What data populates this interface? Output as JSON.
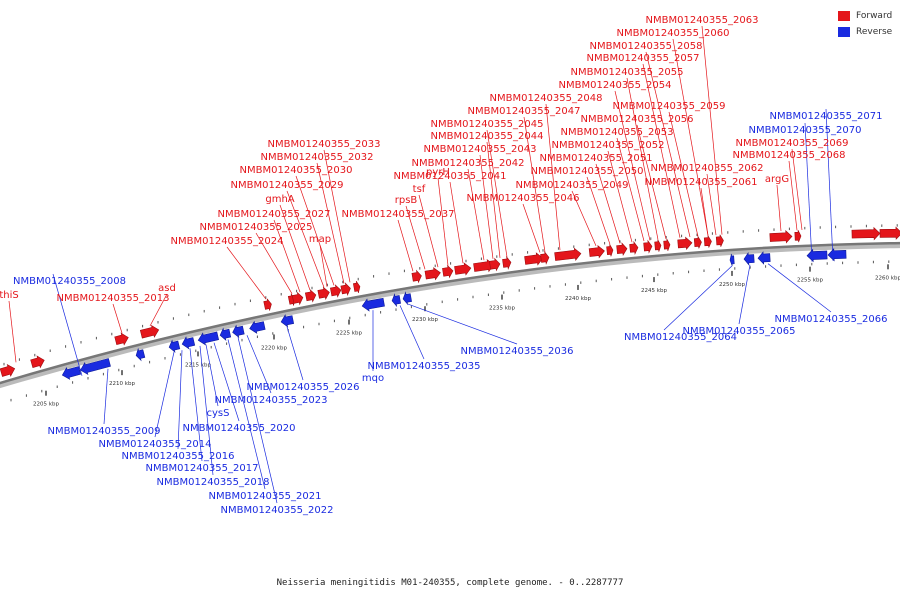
{
  "colors": {
    "forward": "#e4161b",
    "reverse": "#1a2be0",
    "axis": "#888888",
    "connector": "#888888"
  },
  "legend": {
    "forward": "Forward",
    "reverse": "Reverse"
  },
  "caption": "Neisseria meningitidis M01-240355, complete genome. - 0..2287777",
  "tick_unit": "kbp",
  "tick_labels": [
    "2205 kbp",
    "2210 kbp",
    "2215 kbp",
    "2220 kbp",
    "2225 kbp",
    "2230 kbp",
    "2235 kbp",
    "2240 kbp",
    "2245 kbp",
    "2250 kbp",
    "2255 kbp",
    "2260 kbp"
  ],
  "genes": [
    {
      "label": "thiS",
      "strand": "forward"
    },
    {
      "label": "NMBM01240355_2008",
      "strand": "reverse"
    },
    {
      "label": "asd",
      "strand": "forward"
    },
    {
      "label": "NMBM01240355_2013",
      "strand": "forward"
    },
    {
      "label": "NMBM01240355_2009",
      "strand": "reverse"
    },
    {
      "label": "NMBM01240355_2014",
      "strand": "reverse"
    },
    {
      "label": "NMBM01240355_2016",
      "strand": "reverse"
    },
    {
      "label": "NMBM01240355_2017",
      "strand": "reverse"
    },
    {
      "label": "NMBM01240355_2018",
      "strand": "reverse"
    },
    {
      "label": "NMBM01240355_2020",
      "strand": "reverse"
    },
    {
      "label": "cysS",
      "strand": "reverse"
    },
    {
      "label": "NMBM01240355_2021",
      "strand": "reverse"
    },
    {
      "label": "NMBM01240355_2022",
      "strand": "reverse"
    },
    {
      "label": "NMBM01240355_2023",
      "strand": "reverse"
    },
    {
      "label": "NMBM01240355_2026",
      "strand": "reverse"
    },
    {
      "label": "NMBM01240355_2024",
      "strand": "forward"
    },
    {
      "label": "NMBM01240355_2025",
      "strand": "forward"
    },
    {
      "label": "NMBM01240355_2027",
      "strand": "forward"
    },
    {
      "label": "gmhA",
      "strand": "forward"
    },
    {
      "label": "NMBM01240355_2029",
      "strand": "forward"
    },
    {
      "label": "NMBM01240355_2030",
      "strand": "forward"
    },
    {
      "label": "NMBM01240355_2032",
      "strand": "forward"
    },
    {
      "label": "NMBM01240355_2033",
      "strand": "forward"
    },
    {
      "label": "map",
      "strand": "forward"
    },
    {
      "label": "mqo",
      "strand": "reverse"
    },
    {
      "label": "NMBM01240355_2035",
      "strand": "reverse"
    },
    {
      "label": "NMBM01240355_2036",
      "strand": "reverse"
    },
    {
      "label": "NMBM01240355_2037",
      "strand": "forward"
    },
    {
      "label": "rpsB",
      "strand": "forward"
    },
    {
      "label": "tsf",
      "strand": "forward"
    },
    {
      "label": "pyrH",
      "strand": "forward"
    },
    {
      "label": "NMBM01240355_2041",
      "strand": "forward"
    },
    {
      "label": "NMBM01240355_2042",
      "strand": "forward"
    },
    {
      "label": "NMBM01240355_2043",
      "strand": "forward"
    },
    {
      "label": "NMBM01240355_2044",
      "strand": "forward"
    },
    {
      "label": "NMBM01240355_2045",
      "strand": "forward"
    },
    {
      "label": "NMBM01240355_2046",
      "strand": "forward"
    },
    {
      "label": "NMBM01240355_2047",
      "strand": "forward"
    },
    {
      "label": "NMBM01240355_2048",
      "strand": "forward"
    },
    {
      "label": "NMBM01240355_2049",
      "strand": "forward"
    },
    {
      "label": "NMBM01240355_2050",
      "strand": "forward"
    },
    {
      "label": "NMBM01240355_2051",
      "strand": "forward"
    },
    {
      "label": "NMBM01240355_2052",
      "strand": "forward"
    },
    {
      "label": "NMBM01240355_2053",
      "strand": "forward"
    },
    {
      "label": "NMBM01240355_2054",
      "strand": "forward"
    },
    {
      "label": "NMBM01240355_2055",
      "strand": "forward"
    },
    {
      "label": "NMBM01240355_2056",
      "strand": "forward"
    },
    {
      "label": "NMBM01240355_2057",
      "strand": "forward"
    },
    {
      "label": "NMBM01240355_2058",
      "strand": "forward"
    },
    {
      "label": "NMBM01240355_2059",
      "strand": "forward"
    },
    {
      "label": "NMBM01240355_2060",
      "strand": "forward"
    },
    {
      "label": "NMBM01240355_2061",
      "strand": "forward"
    },
    {
      "label": "NMBM01240355_2062",
      "strand": "forward"
    },
    {
      "label": "NMBM01240355_2063",
      "strand": "forward"
    },
    {
      "label": "NMBM01240355_2064",
      "strand": "reverse"
    },
    {
      "label": "NMBM01240355_2065",
      "strand": "reverse"
    },
    {
      "label": "NMBM01240355_2066",
      "strand": "reverse"
    },
    {
      "label": "argG",
      "strand": "forward"
    },
    {
      "label": "NMBM01240355_2068",
      "strand": "forward"
    },
    {
      "label": "NMBM01240355_2069",
      "strand": "forward"
    },
    {
      "label": "NMBM01240355_2070",
      "strand": "reverse"
    },
    {
      "label": "NMBM01240355_2071",
      "strand": "reverse"
    }
  ]
}
